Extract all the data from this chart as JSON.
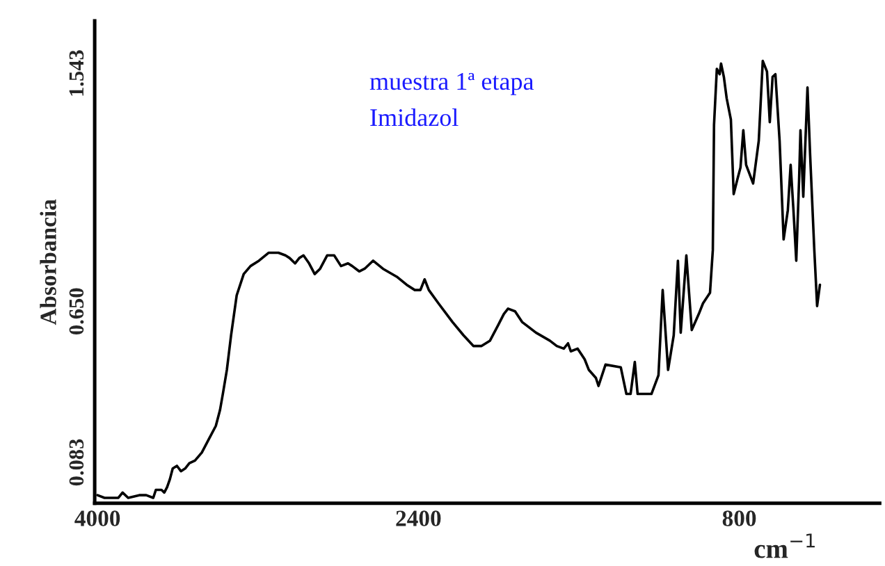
{
  "chart_data": {
    "type": "line",
    "xlabel": "cm$^{−1}$",
    "ylabel": "Absorbancia",
    "annotations": [
      "muestra 1ª etapa",
      "Imidazol"
    ],
    "xlim": [
      4014,
      100
    ],
    "xticks": [
      4000,
      2400,
      800
    ],
    "ylim": [
      -0.07,
      1.74
    ],
    "yticks": [
      1.543,
      {
        "value": 0.65,
        "label": "0.650"
      },
      0.083
    ],
    "grid": false,
    "legend": false,
    "marker": "none",
    "line_style": "solid",
    "series": [
      {
        "color": "#000000",
        "x": [
          4000,
          3965,
          3896,
          3875,
          3847,
          3792,
          3757,
          3722,
          3709,
          3681,
          3667,
          3653,
          3639,
          3625,
          3604,
          3584,
          3563,
          3542,
          3514,
          3480,
          3445,
          3410,
          3389,
          3375,
          3355,
          3334,
          3306,
          3271,
          3237,
          3195,
          3146,
          3098,
          3063,
          3042,
          3015,
          2994,
          2973,
          2945,
          2917,
          2890,
          2855,
          2820,
          2786,
          2751,
          2730,
          2695,
          2668,
          2626,
          2577,
          2508,
          2459,
          2418,
          2390,
          2369,
          2348,
          2300,
          2230,
          2175,
          2126,
          2085,
          2043,
          2001,
          1974,
          1953,
          1918,
          1883,
          1814,
          1745,
          1710,
          1675,
          1654,
          1640,
          1606,
          1571,
          1550,
          1515,
          1502,
          1467,
          1391,
          1363,
          1342,
          1321,
          1307,
          1238,
          1203,
          1182,
          1155,
          1127,
          1106,
          1092,
          1064,
          1037,
          1002,
          981,
          946,
          932,
          926,
          912,
          898,
          891,
          877,
          863,
          842,
          828,
          808,
          794,
          780,
          766,
          731,
          703,
          683,
          662,
          648,
          634,
          620,
          599,
          579,
          558,
          544,
          530,
          516,
          502,
          495,
          481,
          460,
          447,
          426,
          412,
          398
        ],
        "values": [
          -0.04,
          -0.05,
          -0.05,
          -0.03,
          -0.05,
          -0.04,
          -0.04,
          -0.05,
          -0.02,
          -0.02,
          -0.03,
          -0.01,
          0.02,
          0.06,
          0.07,
          0.05,
          0.06,
          0.08,
          0.09,
          0.12,
          0.17,
          0.22,
          0.28,
          0.34,
          0.43,
          0.56,
          0.71,
          0.79,
          0.82,
          0.84,
          0.87,
          0.87,
          0.86,
          0.85,
          0.83,
          0.85,
          0.86,
          0.83,
          0.79,
          0.81,
          0.86,
          0.86,
          0.82,
          0.83,
          0.82,
          0.8,
          0.81,
          0.84,
          0.81,
          0.78,
          0.75,
          0.73,
          0.73,
          0.77,
          0.73,
          0.68,
          0.61,
          0.56,
          0.52,
          0.52,
          0.54,
          0.6,
          0.64,
          0.66,
          0.65,
          0.61,
          0.57,
          0.54,
          0.52,
          0.51,
          0.53,
          0.5,
          0.51,
          0.47,
          0.43,
          0.4,
          0.37,
          0.45,
          0.44,
          0.34,
          0.34,
          0.46,
          0.34,
          0.34,
          0.41,
          0.73,
          0.43,
          0.56,
          0.84,
          0.57,
          0.86,
          0.58,
          0.64,
          0.68,
          0.72,
          0.88,
          1.35,
          1.56,
          1.54,
          1.58,
          1.53,
          1.45,
          1.37,
          1.09,
          1.15,
          1.19,
          1.33,
          1.2,
          1.13,
          1.29,
          1.59,
          1.55,
          1.36,
          1.53,
          1.54,
          1.29,
          0.92,
          1.03,
          1.2,
          1.03,
          0.84,
          1.14,
          1.33,
          1.08,
          1.49,
          1.24,
          0.88,
          0.67,
          0.75
        ]
      }
    ]
  }
}
